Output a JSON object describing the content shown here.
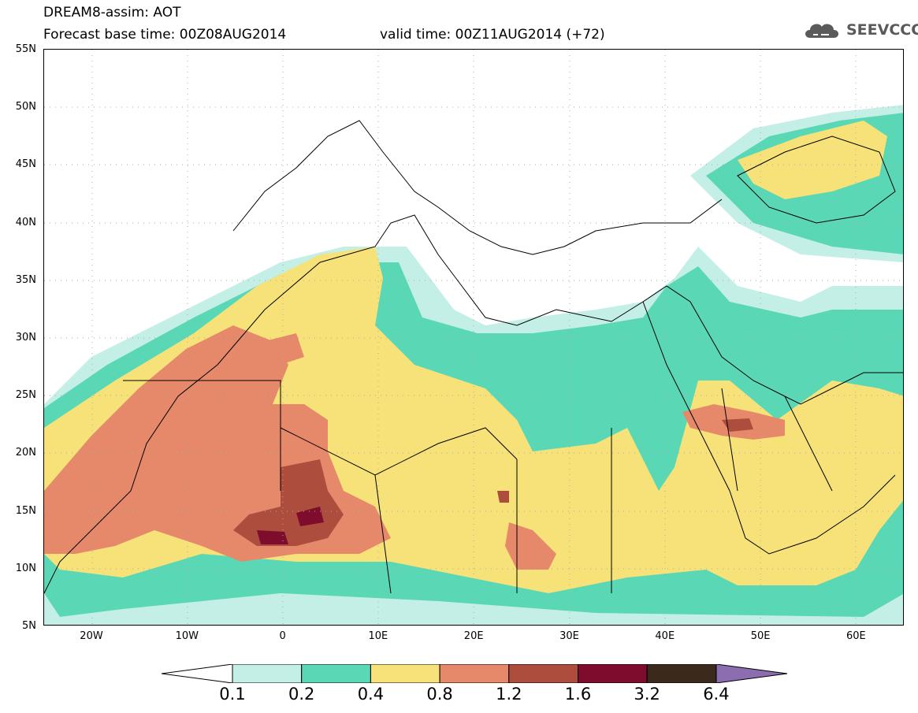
{
  "header": {
    "title": "DREAM8-assim: AOT",
    "base_time": "Forecast base time: 00Z08AUG2014",
    "valid_time": "valid time: 00Z11AUG2014 (+72)",
    "logo_text": "SEEVCCC"
  },
  "map": {
    "projection": "lat-lon",
    "lon_range": [
      -25,
      65
    ],
    "lat_range": [
      5,
      55
    ],
    "grid": true,
    "lat_labels": [
      "55N",
      "50N",
      "45N",
      "40N",
      "35N",
      "30N",
      "25N",
      "20N",
      "15N",
      "10N",
      "5N"
    ],
    "lon_labels": [
      "20W",
      "10W",
      "0",
      "10E",
      "20E",
      "30E",
      "40E",
      "50E",
      "60E"
    ]
  },
  "legend": {
    "labels": [
      "0.1",
      "0.2",
      "0.4",
      "0.8",
      "1.2",
      "1.6",
      "3.2",
      "6.4"
    ],
    "colors": [
      "#c3efe7",
      "#5ad8b6",
      "#f6e279",
      "#e6896b",
      "#ad4d3e",
      "#7e0d2d",
      "#3b2a1c",
      "#8b6db0"
    ]
  },
  "colors": {
    "sea_land": "#ffffff",
    "border_lines": "#000000",
    "grid_dots": "#aaaaaa"
  },
  "chart_data": {
    "type": "heatmap",
    "title": "DREAM8-assim: AOT",
    "x_range": [
      -25,
      65
    ],
    "y_range": [
      5,
      55
    ],
    "levels": [
      0.1,
      0.2,
      0.4,
      0.8,
      1.2,
      1.6,
      3.2,
      6.4
    ],
    "maximum_region": "Sahel near 0E–5E, 12N–15N (AOT > 1.6)"
  }
}
